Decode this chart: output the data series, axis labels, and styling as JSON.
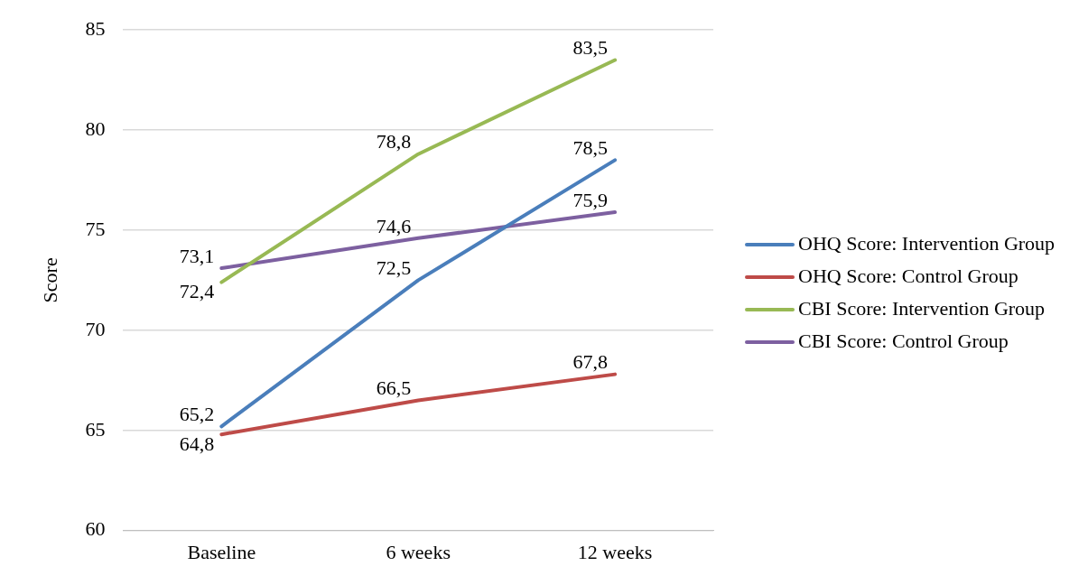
{
  "chart_data": {
    "type": "line",
    "ylabel": "Score",
    "categories": [
      "Baseline",
      "6 weeks",
      "12 weeks"
    ],
    "ylim": [
      60,
      85
    ],
    "yticks": [
      60,
      65,
      70,
      75,
      80,
      85
    ],
    "grid": "y",
    "legend": "right",
    "marker": "none",
    "series": [
      {
        "name": "OHQ Score: Intervention Group",
        "color": "#4a7ebb",
        "values": [
          65.2,
          72.5,
          78.5
        ],
        "value_labels": [
          "65,2",
          "72,5",
          "78,5"
        ]
      },
      {
        "name": "OHQ Score: Control Group",
        "color": "#be4b48",
        "values": [
          64.8,
          66.5,
          67.8
        ],
        "value_labels": [
          "64,8",
          "66,5",
          "67,8"
        ]
      },
      {
        "name": "CBI Score: Intervention Group",
        "color": "#98b954",
        "values": [
          72.4,
          78.8,
          83.5
        ],
        "value_labels": [
          "72,4",
          "78,8",
          "83,5"
        ]
      },
      {
        "name": "CBI Score: Control Group",
        "color": "#7d60a0",
        "values": [
          73.1,
          74.6,
          75.9
        ],
        "value_labels": [
          "73,1",
          "74,6",
          "75,9"
        ]
      }
    ]
  }
}
